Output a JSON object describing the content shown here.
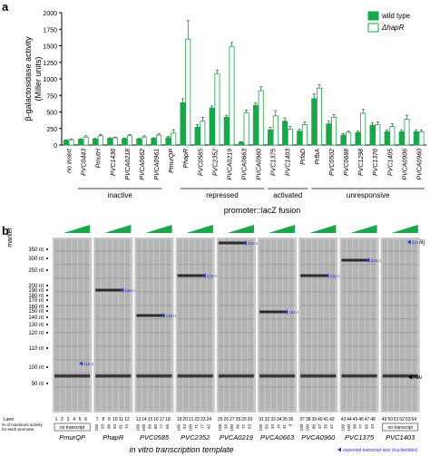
{
  "panel_a_label": "a",
  "panel_b_label": "b",
  "chart_data": {
    "type": "bar",
    "ylabel": "β-galactosidase activity (Miller units)",
    "ylim": [
      0,
      2000
    ],
    "yticks": [
      0,
      250,
      500,
      750,
      1000,
      1250,
      1500,
      1750,
      2000
    ],
    "xlabel": "promoter::lacZ fusion",
    "categories": [
      "no insert",
      "PVC0443",
      "PmutH",
      "PVC1436",
      "PVCA0218",
      "PVCA0662",
      "PVCA0961",
      "PmurQP",
      "PhapR",
      "PVC0585",
      "PVC2352",
      "PVCA0219",
      "PVCA0663",
      "PVCA0960",
      "PVC1375",
      "PVC1403",
      "PrfaD",
      "PrfbA",
      "PVC0502",
      "PVC0688",
      "PVC1298",
      "PVC1376",
      "PVC1405",
      "PVCA0906",
      "PVCA0960"
    ],
    "series": [
      {
        "name": "wild type",
        "color": "#1aa64b",
        "values": [
          70,
          85,
          90,
          100,
          95,
          90,
          100,
          110,
          640,
          270,
          560,
          420,
          40,
          600,
          230,
          360,
          210,
          700,
          320,
          150,
          190,
          300,
          200,
          200,
          200
        ],
        "errors": [
          10,
          10,
          10,
          10,
          10,
          10,
          10,
          20,
          60,
          40,
          30,
          30,
          10,
          40,
          40,
          50,
          30,
          70,
          40,
          20,
          20,
          40,
          30,
          30,
          30
        ]
      },
      {
        "name": "ΔhapR",
        "color": "#ffffff",
        "values": [
          80,
          120,
          140,
          110,
          140,
          120,
          150,
          180,
          1600,
          360,
          1080,
          1490,
          490,
          820,
          440,
          240,
          310,
          860,
          420,
          190,
          480,
          310,
          280,
          390,
          200
        ],
        "errors": [
          10,
          20,
          20,
          10,
          20,
          20,
          20,
          50,
          280,
          60,
          50,
          60,
          40,
          60,
          80,
          40,
          40,
          50,
          40,
          20,
          60,
          40,
          40,
          60,
          30
        ]
      }
    ],
    "groups": [
      {
        "label": "inactive",
        "from": 1,
        "to": 6
      },
      {
        "label": "repressed",
        "from": 8,
        "to": 13
      },
      {
        "label": "activated",
        "from": 14,
        "to": 16
      },
      {
        "label": "unresponsive",
        "from": 17,
        "to": 24
      }
    ],
    "legend_position": "top-right"
  },
  "gel": {
    "marker_title": "marker",
    "hapr_label": "[HapR]",
    "marker_sizes": [
      "350 nt",
      "300 nt",
      "250 nt",
      "200 nt",
      "190 nt",
      "180 nt",
      "170 nt",
      "160 nt",
      "150 nt",
      "140 nt",
      "130 nt",
      "120 nt",
      "110 nt",
      "100 nt",
      "90 nt"
    ],
    "lane_row_label": "Lane",
    "pct_row_label": "% of maximum activity for each promoter",
    "templates": [
      {
        "name": "PmurQP",
        "lanes": [
          "1",
          "2",
          "3",
          "4",
          "5",
          "6"
        ],
        "pct": [],
        "no_transcript": true,
        "band": "118 nt"
      },
      {
        "name": "PhapR",
        "lanes": [
          "7",
          "8",
          "9",
          "10",
          "11",
          "12"
        ],
        "pct": [
          "100",
          "93",
          "98",
          "93",
          "81",
          "74"
        ],
        "no_transcript": false,
        "band": "169 nt"
      },
      {
        "name": "PVC0585",
        "lanes": [
          "13",
          "14",
          "15",
          "16",
          "17",
          "18"
        ],
        "pct": [
          "100",
          "100",
          "89",
          "60",
          "77",
          "56"
        ],
        "no_transcript": false,
        "band": "138 nt"
      },
      {
        "name": "PVC2352",
        "lanes": [
          "19",
          "20",
          "21",
          "22",
          "23",
          "24"
        ],
        "pct": [
          "100",
          "93",
          "100",
          "71",
          "77",
          "42"
        ],
        "no_transcript": false,
        "band": "176 nt"
      },
      {
        "name": "PVCA0219",
        "lanes": [
          "25",
          "26",
          "27",
          "28",
          "29",
          "30"
        ],
        "pct": [
          "100",
          "95",
          "100",
          "96",
          "77",
          "63"
        ],
        "no_transcript": false,
        "band": "330 nt"
      },
      {
        "name": "PVCA0663",
        "lanes": [
          "31",
          "32",
          "33",
          "34",
          "35",
          "36"
        ],
        "pct": [
          "100",
          "50",
          "33",
          "10",
          "31",
          "3"
        ],
        "no_transcript": false,
        "band": "164 nt"
      },
      {
        "name": "PVCA0960",
        "lanes": [
          "37",
          "38",
          "39",
          "40",
          "41",
          "42"
        ],
        "pct": [
          "100",
          "100",
          "80",
          "47",
          "35",
          "47"
        ],
        "no_transcript": false,
        "band": "215 nt"
      },
      {
        "name": "PVC1375",
        "lanes": [
          "43",
          "44",
          "45",
          "46",
          "47",
          "48"
        ],
        "pct": [
          "100",
          "100",
          "98",
          "77",
          "66",
          "43"
        ],
        "no_transcript": false,
        "band": "225 nt"
      },
      {
        "name": "PVC1403",
        "lanes": [
          "49",
          "50",
          "51",
          "52",
          "53",
          "54"
        ],
        "pct": [],
        "no_transcript": true,
        "band": "331 nt"
      }
    ],
    "no_transcript_text": "no transcript",
    "rnai_label": "RNAi",
    "footer_title": "in vitro transcription template",
    "footer_note": "expected transcript size (nucleotides)"
  }
}
